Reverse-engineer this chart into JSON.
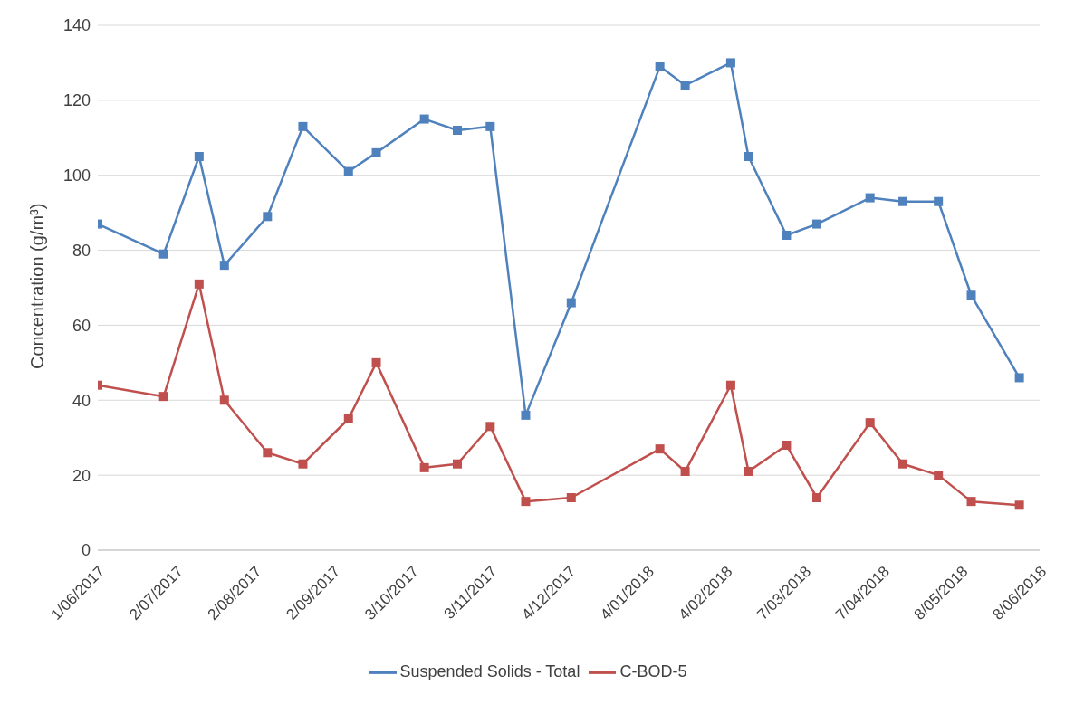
{
  "chart_data": {
    "type": "line",
    "ylabel": "Concentration (g/m³)",
    "x": [
      "2017-06-01",
      "2017-06-27",
      "2017-07-11",
      "2017-07-21",
      "2017-08-07",
      "2017-08-21",
      "2017-09-08",
      "2017-09-19",
      "2017-10-08",
      "2017-10-21",
      "2017-11-03",
      "2017-11-17",
      "2017-12-05",
      "2018-01-09",
      "2018-01-19",
      "2018-02-06",
      "2018-02-13",
      "2018-02-28",
      "2018-03-12",
      "2018-04-02",
      "2018-04-15",
      "2018-04-29",
      "2018-05-12",
      "2018-05-31"
    ],
    "series": [
      {
        "name": "Suspended Solids - Total",
        "color": "#4f81bd",
        "values": [
          87,
          79,
          105,
          76,
          89,
          113,
          101,
          106,
          115,
          112,
          113,
          36,
          66,
          129,
          124,
          130,
          105,
          84,
          87,
          94,
          93,
          93,
          68,
          46
        ]
      },
      {
        "name": "C-BOD-5",
        "color": "#c0504d",
        "values": [
          44,
          41,
          71,
          40,
          26,
          23,
          35,
          50,
          22,
          23,
          33,
          13,
          14,
          27,
          21,
          44,
          21,
          28,
          14,
          34,
          23,
          20,
          13,
          12
        ]
      }
    ],
    "xlim": [
      "2017-06-01",
      "2018-06-08"
    ],
    "xticks": [
      {
        "value": "2017-06-01",
        "label": "1/06/2017"
      },
      {
        "value": "2017-07-02",
        "label": "2/07/2017"
      },
      {
        "value": "2017-08-02",
        "label": "2/08/2017"
      },
      {
        "value": "2017-09-02",
        "label": "2/09/2017"
      },
      {
        "value": "2017-10-03",
        "label": "3/10/2017"
      },
      {
        "value": "2017-11-03",
        "label": "3/11/2017"
      },
      {
        "value": "2017-12-04",
        "label": "4/12/2017"
      },
      {
        "value": "2018-01-04",
        "label": "4/01/2018"
      },
      {
        "value": "2018-02-04",
        "label": "4/02/2018"
      },
      {
        "value": "2018-03-07",
        "label": "7/03/2018"
      },
      {
        "value": "2018-04-07",
        "label": "7/04/2018"
      },
      {
        "value": "2018-05-08",
        "label": "8/05/2018"
      },
      {
        "value": "2018-06-08",
        "label": "8/06/2018"
      }
    ],
    "ylim": [
      0,
      140
    ],
    "yticks": [
      0,
      20,
      40,
      60,
      80,
      100,
      120,
      140
    ],
    "grid": "y",
    "legend": "bottom",
    "marker": "square",
    "line_style": "solid"
  }
}
